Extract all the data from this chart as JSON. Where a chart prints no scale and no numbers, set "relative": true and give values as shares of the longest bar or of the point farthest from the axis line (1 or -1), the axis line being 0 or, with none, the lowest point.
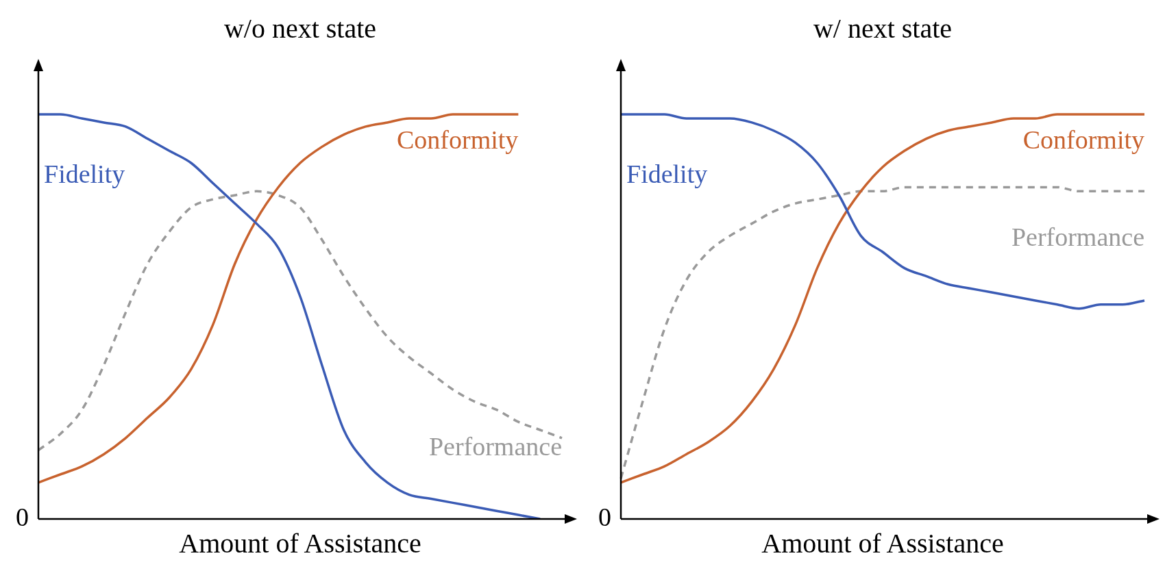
{
  "chart_data": [
    {
      "type": "line",
      "title": "w/o next state",
      "xlabel": "Amount of Assistance",
      "relative": true,
      "legend": false,
      "grid": false,
      "marker": "none",
      "annotations": [
        "0"
      ],
      "categories": [
        null,
        null,
        null,
        null,
        null,
        null,
        null,
        null,
        null,
        null,
        null,
        null,
        null,
        null,
        null,
        null,
        null,
        null,
        null,
        null,
        null,
        null,
        null,
        null,
        null
      ],
      "series": [
        {
          "name": "Fidelity",
          "color": "#3a5bb5",
          "line_style": "solid",
          "values": [
            1.0,
            1.0,
            0.99,
            0.98,
            0.97,
            0.94,
            0.91,
            0.88,
            0.83,
            0.78,
            0.73,
            0.67,
            0.55,
            0.38,
            0.22,
            0.14,
            0.09,
            0.06,
            0.05,
            0.04,
            0.03,
            0.02,
            0.01,
            0.0,
            null
          ]
        },
        {
          "name": "Conformity",
          "color": "#c8622e",
          "line_style": "solid",
          "values": [
            0.09,
            0.11,
            0.13,
            0.16,
            0.2,
            0.25,
            0.3,
            0.37,
            0.48,
            0.63,
            0.74,
            0.82,
            0.88,
            0.92,
            0.95,
            0.97,
            0.98,
            0.99,
            0.99,
            1.0,
            1.0,
            1.0,
            1.0,
            null,
            null
          ]
        },
        {
          "name": "Performance",
          "color": "#999999",
          "line_style": "dashed",
          "values": [
            0.17,
            0.21,
            0.27,
            0.38,
            0.51,
            0.63,
            0.71,
            0.77,
            0.79,
            0.8,
            0.81,
            0.8,
            0.77,
            0.69,
            0.6,
            0.52,
            0.45,
            0.4,
            0.36,
            0.32,
            0.29,
            0.27,
            0.24,
            0.22,
            0.2
          ]
        }
      ]
    },
    {
      "type": "line",
      "title": "w/ next state",
      "xlabel": "Amount of Assistance",
      "relative": true,
      "legend": false,
      "grid": false,
      "marker": "none",
      "annotations": [
        "0"
      ],
      "categories": [
        null,
        null,
        null,
        null,
        null,
        null,
        null,
        null,
        null,
        null,
        null,
        null,
        null,
        null,
        null,
        null,
        null,
        null,
        null,
        null,
        null,
        null,
        null,
        null,
        null
      ],
      "series": [
        {
          "name": "Fidelity",
          "color": "#3a5bb5",
          "line_style": "solid",
          "values": [
            1.0,
            1.0,
            1.0,
            0.99,
            0.99,
            0.99,
            0.98,
            0.96,
            0.93,
            0.88,
            0.8,
            0.7,
            0.66,
            0.62,
            0.6,
            0.58,
            0.57,
            0.56,
            0.55,
            0.54,
            0.53,
            0.52,
            0.53,
            0.53,
            0.54
          ]
        },
        {
          "name": "Conformity",
          "color": "#c8622e",
          "line_style": "solid",
          "values": [
            0.09,
            0.11,
            0.13,
            0.16,
            0.19,
            0.23,
            0.29,
            0.37,
            0.48,
            0.62,
            0.73,
            0.81,
            0.87,
            0.91,
            0.94,
            0.96,
            0.97,
            0.98,
            0.99,
            0.99,
            1.0,
            1.0,
            1.0,
            1.0,
            1.0
          ]
        },
        {
          "name": "Performance",
          "color": "#999999",
          "line_style": "dashed",
          "values": [
            0.1,
            0.29,
            0.47,
            0.59,
            0.66,
            0.7,
            0.73,
            0.76,
            0.78,
            0.79,
            0.8,
            0.81,
            0.81,
            0.82,
            0.82,
            0.82,
            0.82,
            0.82,
            0.82,
            0.82,
            0.82,
            0.81,
            0.81,
            0.81,
            0.81
          ]
        }
      ]
    }
  ]
}
